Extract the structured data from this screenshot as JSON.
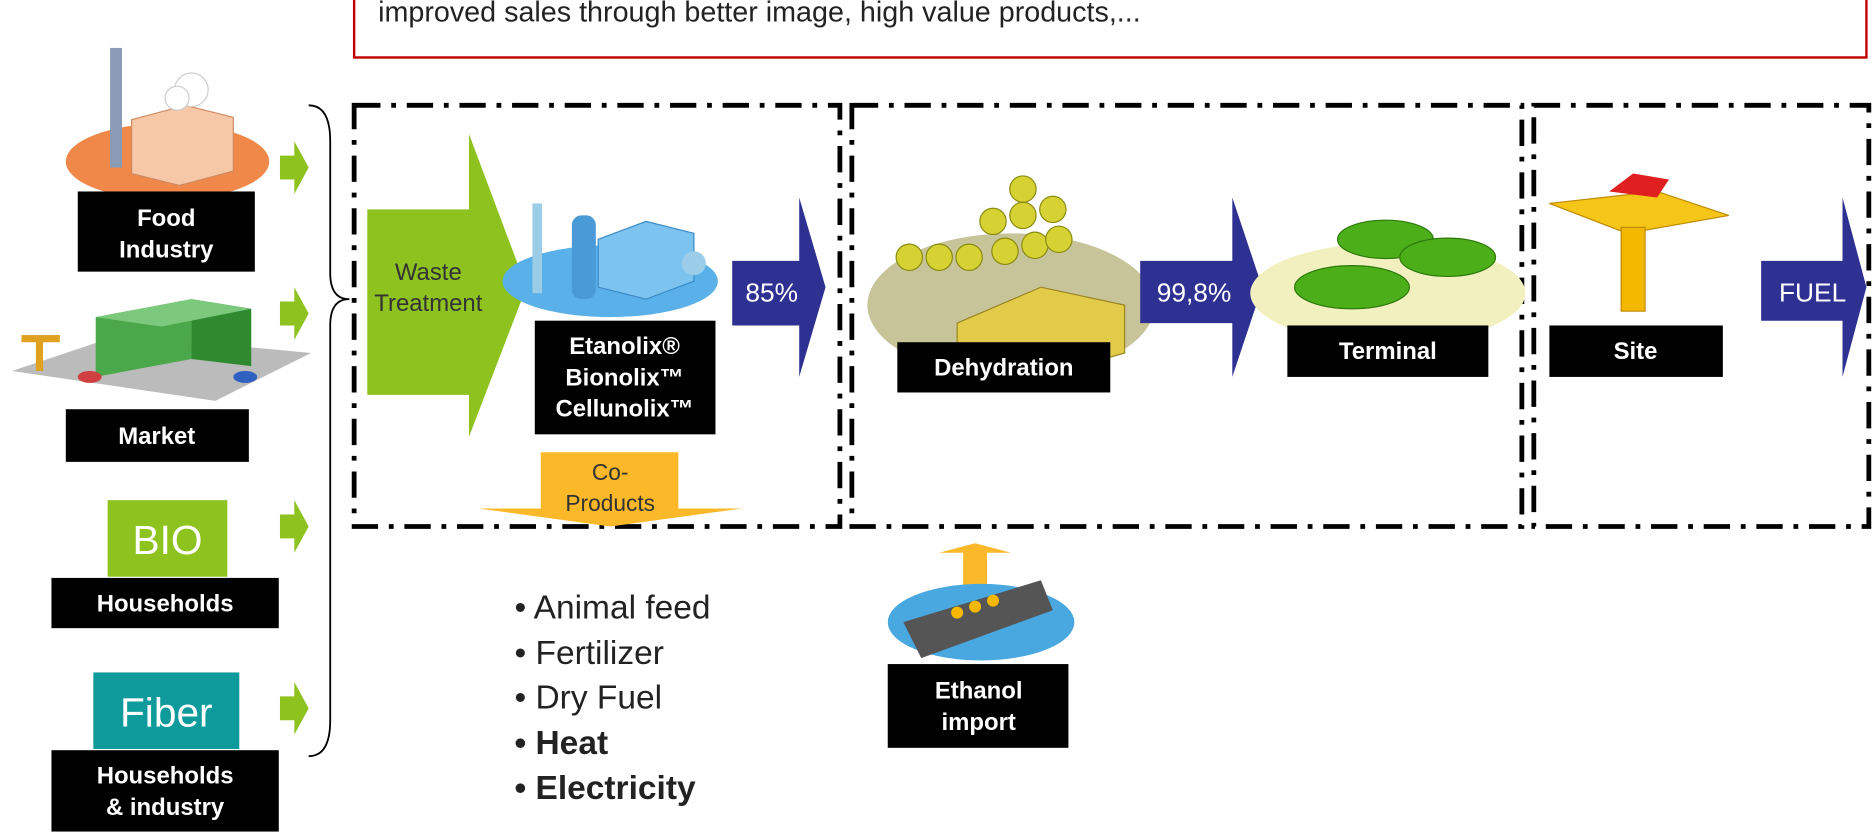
{
  "header": {
    "text": "improved sales through better image, high value products,..."
  },
  "sources": [
    {
      "label": [
        "Food",
        "Industry"
      ]
    },
    {
      "label": [
        "Market"
      ]
    },
    {
      "badge": "BIO",
      "label": [
        "Households"
      ]
    },
    {
      "badge": "Fiber",
      "label": [
        "Households",
        "& industry"
      ]
    }
  ],
  "process": {
    "waste_treatment": [
      "Waste",
      "Treatment"
    ],
    "plant": [
      "Etanolix®",
      "Bionolix™",
      "Cellunolix™"
    ],
    "arrow_1": "85%",
    "co_products": [
      "Co-",
      "Products"
    ],
    "dehydration": "Dehydration",
    "arrow_2": "99,8%",
    "terminal": "Terminal",
    "site": "Site",
    "arrow_3": "FUEL",
    "ethanol_import": [
      "Ethanol",
      "import"
    ]
  },
  "co_product_list": [
    "• Animal feed",
    "• Fertilizer",
    "• Dry Fuel",
    "• Heat",
    "• Electricity"
  ]
}
